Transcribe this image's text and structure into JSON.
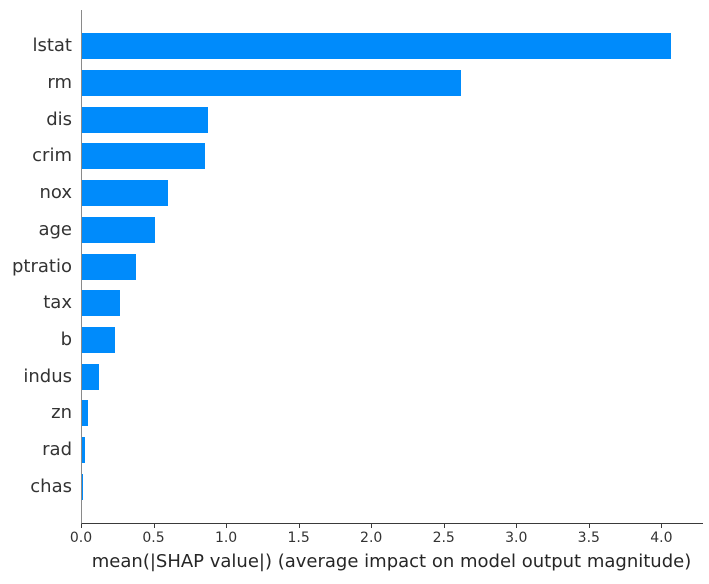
{
  "chart_data": {
    "type": "bar",
    "orientation": "horizontal",
    "title": "",
    "xlabel": "mean(|SHAP value|) (average impact on model output magnitude)",
    "ylabel": "",
    "categories": [
      "lstat",
      "rm",
      "dis",
      "crim",
      "nox",
      "age",
      "ptratio",
      "tax",
      "b",
      "indus",
      "zn",
      "rad",
      "chas"
    ],
    "values": [
      4.06,
      2.61,
      0.87,
      0.85,
      0.59,
      0.5,
      0.37,
      0.26,
      0.23,
      0.12,
      0.04,
      0.02,
      0.01
    ],
    "xlim": [
      0,
      4.28
    ],
    "xticks": [
      0.0,
      0.5,
      1.0,
      1.5,
      2.0,
      2.5,
      3.0,
      3.5,
      4.0
    ],
    "xtick_labels": [
      "0.0",
      "0.5",
      "1.0",
      "1.5",
      "2.0",
      "2.5",
      "3.0",
      "3.5",
      "4.0"
    ],
    "grid": false,
    "legend": null,
    "bar_color": "#008bfb"
  },
  "colors": {
    "bar": "#008bfb",
    "spine_left": "#8a8a8a",
    "spine_bottom": "#3a3a3a",
    "text": "#333333",
    "background": "#ffffff"
  }
}
